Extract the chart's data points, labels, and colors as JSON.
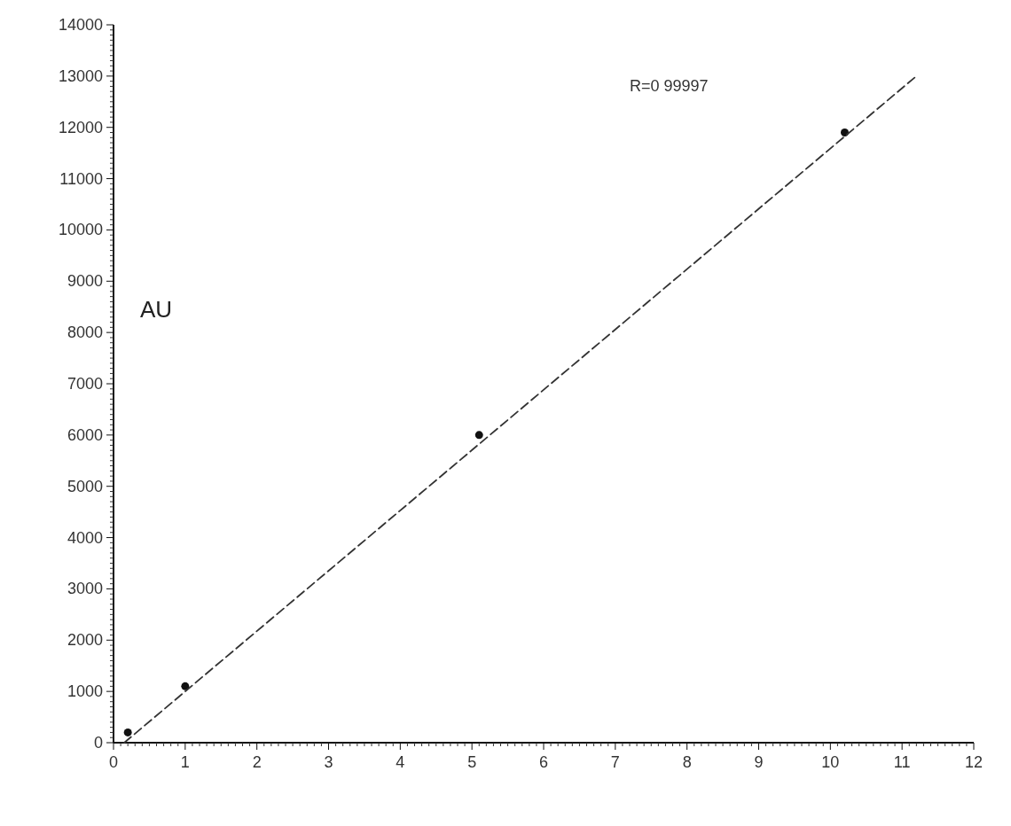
{
  "chart_data": {
    "type": "scatter",
    "ylabel": "AU",
    "annotations": [
      "R=0 99997"
    ],
    "xlim": [
      0,
      12
    ],
    "xticks": [
      0,
      1,
      2,
      3,
      4,
      5,
      6,
      7,
      8,
      9,
      10,
      11,
      12
    ],
    "ylim": [
      0,
      14000
    ],
    "yticks": [
      0,
      1000,
      2000,
      3000,
      4000,
      5000,
      6000,
      7000,
      8000,
      9000,
      10000,
      11000,
      12000,
      13000,
      14000
    ],
    "grid": false,
    "series": [
      {
        "color": "#111111",
        "marker": "circle",
        "x": [
          0.2,
          1.0,
          5.1,
          10.2
        ],
        "values": [
          200,
          1100,
          6000,
          11900
        ]
      },
      {
        "type": "line",
        "color": "#333333",
        "line_style": "dashed",
        "x": [
          0.15,
          11.2
        ],
        "values": [
          0,
          13000
        ]
      }
    ]
  }
}
